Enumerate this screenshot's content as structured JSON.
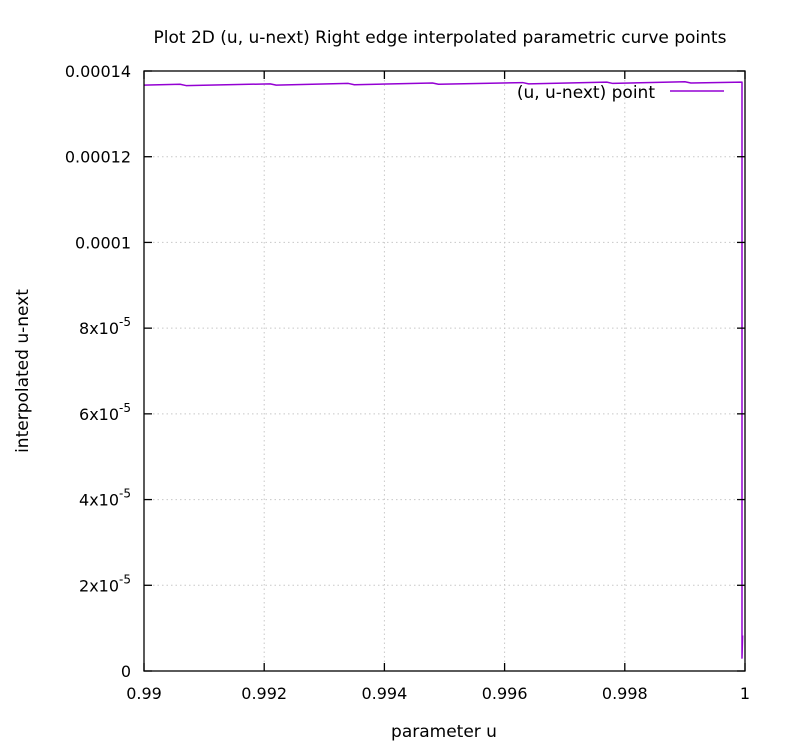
{
  "chart_data": {
    "type": "line",
    "title": "Plot 2D (u, u-next) Right edge interpolated parametric curve points",
    "xlabel": "parameter u",
    "ylabel": "interpolated u-next",
    "xlim": [
      0.99,
      1.0
    ],
    "ylim": [
      0,
      0.00014
    ],
    "grid": true,
    "legend_position": "top-right",
    "x_ticks": [
      {
        "value": 0.99,
        "label": "0.99"
      },
      {
        "value": 0.992,
        "label": "0.992"
      },
      {
        "value": 0.994,
        "label": "0.994"
      },
      {
        "value": 0.996,
        "label": "0.996"
      },
      {
        "value": 0.998,
        "label": "0.998"
      },
      {
        "value": 1.0,
        "label": "1"
      }
    ],
    "y_ticks": [
      {
        "value": 0,
        "label": "0",
        "base": "0",
        "exp": ""
      },
      {
        "value": 2e-05,
        "label": "2x10-5",
        "base": "2x10",
        "exp": "-5"
      },
      {
        "value": 4e-05,
        "label": "4x10-5",
        "base": "4x10",
        "exp": "-5"
      },
      {
        "value": 6e-05,
        "label": "6x10-5",
        "base": "6x10",
        "exp": "-5"
      },
      {
        "value": 8e-05,
        "label": "8x10-5",
        "base": "8x10",
        "exp": "-5"
      },
      {
        "value": 0.0001,
        "label": "0.0001",
        "base": "0.0001",
        "exp": ""
      },
      {
        "value": 0.00012,
        "label": "0.00012",
        "base": "0.00012",
        "exp": ""
      },
      {
        "value": 0.00014,
        "label": "0.00014",
        "base": "0.00014",
        "exp": ""
      }
    ],
    "series": [
      {
        "name": "(u, u-next) point",
        "color": "#9400d3",
        "x": [
          0.99,
          0.9906,
          0.9907,
          0.9921,
          0.9922,
          0.9934,
          0.9935,
          0.9948,
          0.9949,
          0.9963,
          0.9964,
          0.9977,
          0.9978,
          0.999,
          0.9991,
          0.99995,
          0.99995,
          0.99996
        ],
        "y": [
          0.0001367,
          0.0001369,
          0.0001366,
          0.000137,
          0.0001367,
          0.0001371,
          0.0001368,
          0.0001372,
          0.0001369,
          0.0001373,
          0.000137,
          0.0001374,
          0.0001371,
          0.0001375,
          0.0001372,
          0.0001374,
          3e-06,
          8.3e-06
        ]
      }
    ]
  }
}
